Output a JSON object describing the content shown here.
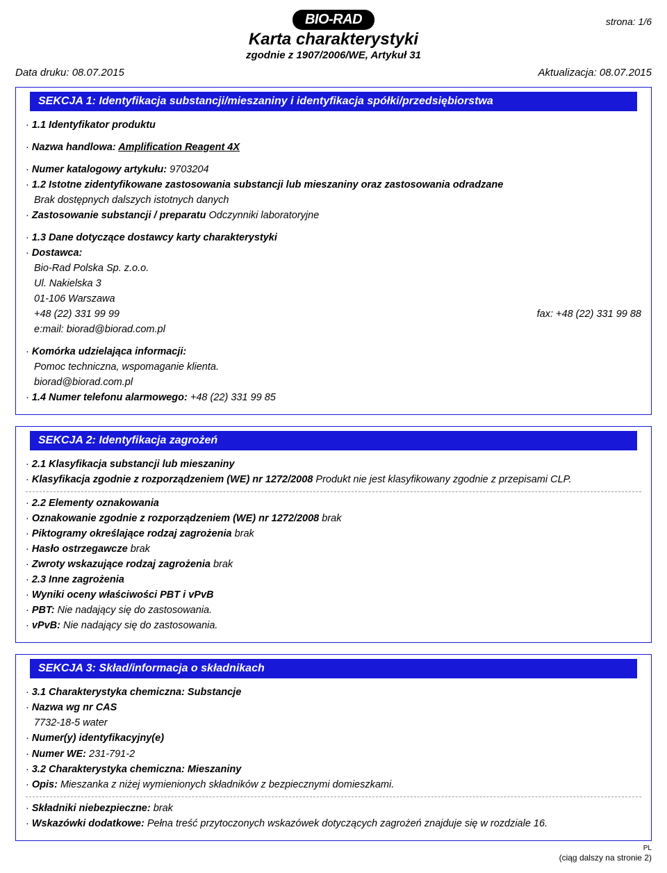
{
  "colors": {
    "section_header_bg": "#1818d8",
    "section_border": "#1818d8",
    "logo_bg": "#000000",
    "logo_fg": "#ffffff",
    "text": "#000000",
    "dash": "#999999"
  },
  "header": {
    "logo_text": "BIO-RAD",
    "page_indicator": "strona: 1/6",
    "title": "Karta charakterystyki",
    "subtitle": "zgodnie z 1907/2006/WE, Artykuł 31",
    "print_date": "Data druku: 08.07.2015",
    "update_date": "Aktualizacja: 08.07.2015"
  },
  "sekcja1": {
    "title": "SEKCJA 1: Identyfikacja substancji/mieszaniny i identyfikacja spółki/przedsiębiorstwa",
    "s11": "1.1 Identyfikator produktu",
    "trade_label": "Nazwa handlowa: ",
    "trade_value": "Amplification Reagent 4X",
    "catalog_label": "Numer katalogowy artykułu: ",
    "catalog_value": "9703204",
    "s12": "1.2 Istotne zidentyfikowane zastosowania substancji lub mieszaniny oraz zastosowania odradzane",
    "s12_sub": "Brak dostępnych dalszych istotnych danych",
    "use_label": "Zastosowanie substancji / preparatu ",
    "use_value": "Odczynniki laboratoryjne",
    "s13": "1.3 Dane dotyczące dostawcy karty charakterystyki",
    "supplier_label": "Dostawca:",
    "supplier_name": "Bio-Rad Polska Sp. z.o.o.",
    "supplier_street": "Ul. Nakielska 3",
    "supplier_city": "01-106 Warszawa",
    "supplier_phone": "+48 (22) 331 99 99",
    "supplier_fax": "fax: +48 (22) 331 99 88",
    "supplier_email": "e:mail: biorad@biorad.com.pl",
    "info_label": "Komórka udzielająca informacji:",
    "info_line1": "Pomoc techniczna, wspomaganie klienta.",
    "info_line2": "biorad@biorad.com.pl",
    "s14_label": "1.4 Numer telefonu alarmowego: ",
    "s14_value": "+48 (22) 331 99 85"
  },
  "sekcja2": {
    "title": "SEKCJA 2: Identyfikacja zagrożeń",
    "s21": "2.1 Klasyfikacja substancji lub mieszaniny",
    "class_label": "Klasyfikacja zgodnie z rozporządzeniem (WE) nr 1272/2008 ",
    "class_value": "Produkt nie jest klasyfikowany zgodnie z przepisami CLP.",
    "s22": "2.2 Elementy oznakowania",
    "label_label": "Oznakowanie zgodnie z rozporządzeniem (WE) nr 1272/2008 ",
    "label_value": "brak",
    "picto_label": "Piktogramy określające rodzaj zagrożenia ",
    "picto_value": "brak",
    "signal_label": "Hasło ostrzegawcze ",
    "signal_value": "brak",
    "hazard_label": "Zwroty wskazujące rodzaj zagrożenia ",
    "hazard_value": "brak",
    "s23": "2.3 Inne zagrożenia",
    "pbt_label": "Wyniki oceny właściwości PBT i vPvB",
    "pbt_k": "PBT: ",
    "pbt_v": "Nie nadający się do zastosowania.",
    "vpvb_k": "vPvB: ",
    "vpvb_v": "Nie nadający się do zastosowania."
  },
  "sekcja3": {
    "title": "SEKCJA 3: Skład/informacja o składnikach",
    "s31": "3.1 Charakterystyka chemiczna: Substancje",
    "cas_label": "Nazwa wg nr CAS",
    "cas_value": "7732-18-5 water",
    "id_label": "Numer(y) identyfikacyjny(e)",
    "we_label": "Numer WE: ",
    "we_value": "231-791-2",
    "s32": "3.2 Charakterystyka chemiczna: Mieszaniny",
    "desc_label": "Opis: ",
    "desc_value": "Mieszanka z niżej wymienionych składników z bezpiecznymi domieszkami.",
    "danger_label": "Składniki niebezpieczne: ",
    "danger_value": "brak",
    "extra_label": "Wskazówki dodatkowe: ",
    "extra_value": "Pełna treść przytoczonych wskazówek dotyczących zagrożeń znajduje się w rozdziale 16."
  },
  "footer": {
    "lang": "PL",
    "continued": "(ciąg dalszy na stronie 2)"
  }
}
